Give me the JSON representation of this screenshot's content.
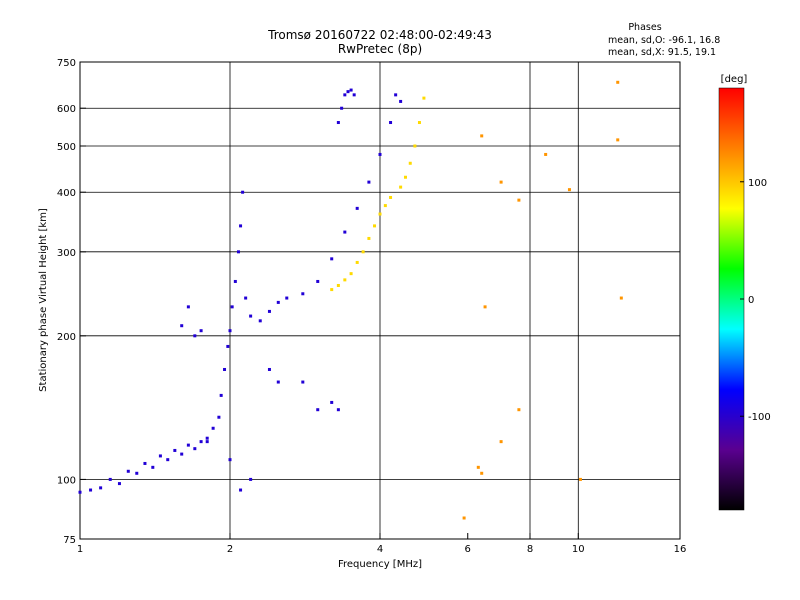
{
  "chart_data": {
    "type": "scatter",
    "title": "Tromsø 20160722 02:48:00-02:49:43",
    "subtitle": "RwPretec (8p)",
    "phase_box": {
      "heading": "Phases",
      "line1": "mean, sd,O: -96.1, 16.8",
      "line2": "mean, sd,X:  91.5, 19.1"
    },
    "xlabel": "Frequency [MHz]",
    "ylabel": "Stationary phase Virtual Height [km]",
    "x_scale": "log2",
    "y_scale": "log",
    "xlim": [
      1,
      16
    ],
    "ylim": [
      75,
      750
    ],
    "x_ticks": [
      {
        "value": 1,
        "label": "1"
      },
      {
        "value": 2,
        "label": "2"
      },
      {
        "value": 4,
        "label": "4"
      },
      {
        "value": 6,
        "label": "6"
      },
      {
        "value": 8,
        "label": "8"
      },
      {
        "value": 10,
        "label": "10"
      },
      {
        "value": 16,
        "label": "16"
      }
    ],
    "x_gridlines": [
      2,
      4,
      8,
      10
    ],
    "y_ticks": [
      {
        "value": 75,
        "label": "75"
      },
      {
        "value": 100,
        "label": "100"
      },
      {
        "value": 200,
        "label": "200"
      },
      {
        "value": 300,
        "label": "300"
      },
      {
        "value": 400,
        "label": "400"
      },
      {
        "value": 500,
        "label": "500"
      },
      {
        "value": 600,
        "label": "600"
      },
      {
        "value": 750,
        "label": "750"
      }
    ],
    "y_gridlines": [
      100,
      200,
      300,
      400,
      500,
      600
    ],
    "colorbar": {
      "label": "[deg]",
      "range": [
        -180,
        180
      ],
      "ticks": [
        {
          "value": 100,
          "label": "100"
        },
        {
          "value": 0,
          "label": "0"
        },
        {
          "value": -100,
          "label": "-100"
        }
      ],
      "stops": [
        "#000000",
        "#5a0090",
        "#0000ff",
        "#00ffff",
        "#00ff00",
        "#ffff00",
        "#ff8000",
        "#ff0000"
      ]
    },
    "series": [
      {
        "name": "O-mode trace (blue)",
        "phase_deg": -96,
        "points": [
          [
            1.0,
            94
          ],
          [
            1.05,
            95
          ],
          [
            1.1,
            96
          ],
          [
            1.15,
            100
          ],
          [
            1.2,
            98
          ],
          [
            1.25,
            104
          ],
          [
            1.3,
            103
          ],
          [
            1.35,
            108
          ],
          [
            1.4,
            106
          ],
          [
            1.45,
            112
          ],
          [
            1.5,
            110
          ],
          [
            1.55,
            115
          ],
          [
            1.6,
            113
          ],
          [
            1.65,
            118
          ],
          [
            1.7,
            116
          ],
          [
            1.75,
            120
          ],
          [
            1.8,
            122
          ],
          [
            1.85,
            128
          ],
          [
            1.9,
            135
          ],
          [
            1.92,
            150
          ],
          [
            1.95,
            170
          ],
          [
            1.98,
            190
          ],
          [
            2.0,
            205
          ],
          [
            2.02,
            230
          ],
          [
            2.05,
            260
          ],
          [
            2.08,
            300
          ],
          [
            2.1,
            340
          ],
          [
            2.12,
            400
          ],
          [
            2.15,
            240
          ],
          [
            2.2,
            220
          ],
          [
            2.3,
            215
          ],
          [
            2.4,
            225
          ],
          [
            2.5,
            235
          ],
          [
            2.6,
            240
          ],
          [
            2.8,
            245
          ],
          [
            3.0,
            260
          ],
          [
            3.2,
            290
          ],
          [
            3.4,
            330
          ],
          [
            3.6,
            370
          ],
          [
            3.8,
            420
          ],
          [
            4.0,
            480
          ],
          [
            4.2,
            560
          ],
          [
            4.3,
            640
          ],
          [
            4.4,
            620
          ]
        ]
      },
      {
        "name": "O-mode cluster 3.3-3.5 MHz (blue)",
        "phase_deg": -96,
        "points": [
          [
            3.3,
            560
          ],
          [
            3.35,
            600
          ],
          [
            3.4,
            640
          ],
          [
            3.45,
            650
          ],
          [
            3.5,
            655
          ],
          [
            3.55,
            640
          ]
        ]
      },
      {
        "name": "Low-height scatter (blue)",
        "phase_deg": -96,
        "points": [
          [
            1.6,
            210
          ],
          [
            1.65,
            230
          ],
          [
            1.7,
            200
          ],
          [
            1.75,
            205
          ],
          [
            2.4,
            170
          ],
          [
            2.5,
            160
          ],
          [
            2.8,
            160
          ],
          [
            3.0,
            140
          ],
          [
            3.2,
            145
          ],
          [
            3.3,
            140
          ],
          [
            1.8,
            120
          ],
          [
            2.0,
            110
          ],
          [
            2.1,
            95
          ],
          [
            2.2,
            100
          ]
        ]
      },
      {
        "name": "X-mode trace (yellow)",
        "phase_deg": 92,
        "points": [
          [
            3.2,
            250
          ],
          [
            3.3,
            255
          ],
          [
            3.4,
            262
          ],
          [
            3.5,
            270
          ],
          [
            3.6,
            285
          ],
          [
            3.7,
            300
          ],
          [
            3.8,
            320
          ],
          [
            3.9,
            340
          ],
          [
            4.0,
            360
          ],
          [
            4.1,
            375
          ],
          [
            4.2,
            390
          ],
          [
            4.4,
            410
          ],
          [
            4.5,
            430
          ],
          [
            4.6,
            460
          ],
          [
            4.7,
            500
          ],
          [
            4.8,
            560
          ],
          [
            4.9,
            630
          ]
        ]
      },
      {
        "name": "Isolated echoes",
        "phase_deg": 120,
        "points": [
          [
            6.4,
            525
          ],
          [
            7.0,
            420
          ],
          [
            7.6,
            385
          ],
          [
            8.6,
            480
          ],
          [
            9.6,
            405
          ],
          [
            12.0,
            515
          ],
          [
            12.0,
            680
          ],
          [
            12.2,
            240
          ],
          [
            6.5,
            230
          ],
          [
            7.6,
            140
          ],
          [
            7.0,
            120
          ],
          [
            6.3,
            106
          ],
          [
            6.4,
            103
          ],
          [
            10.1,
            100
          ],
          [
            5.9,
            83
          ]
        ]
      }
    ]
  }
}
